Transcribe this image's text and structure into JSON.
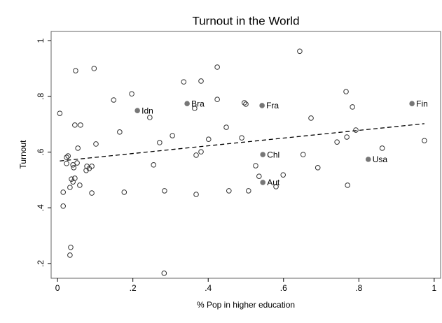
{
  "chart_data": {
    "type": "scatter",
    "title": "Turnout in the World",
    "x_label": "% Pop in higher education",
    "y_label": "Turnout",
    "xlim": [
      -0.017,
      1.017
    ],
    "ylim": [
      0.147,
      1.033
    ],
    "xticks": [
      0,
      {
        "value": 0.2,
        "label": ".2"
      },
      {
        "value": 0.4,
        "label": ".4"
      },
      {
        "value": 0.6,
        "label": ".6"
      },
      {
        "value": 0.8,
        "label": ".8"
      },
      1
    ],
    "yticks": [
      {
        "value": 0.2,
        "label": ".2"
      },
      {
        "value": 0.4,
        "label": ".4"
      },
      {
        "value": 0.6,
        "label": ".6"
      },
      {
        "value": 0.8,
        "label": ".8"
      },
      1
    ],
    "series": [
      {
        "marker": "hollow",
        "color": "#333333",
        "x": [
          0.006,
          0.015,
          0.015,
          0.024,
          0.024,
          0.028,
          0.033,
          0.035,
          0.033,
          0.037,
          0.041,
          0.041,
          0.043,
          0.046,
          0.046,
          0.048,
          0.052,
          0.054,
          0.061,
          0.059,
          0.078,
          0.076,
          0.084,
          0.091,
          0.091,
          0.097,
          0.102,
          0.149,
          0.165,
          0.177,
          0.197,
          0.245,
          0.255,
          0.271,
          0.284,
          0.283,
          0.305,
          0.335,
          0.364,
          0.368,
          0.368,
          0.381,
          0.381,
          0.401,
          0.424,
          0.424,
          0.448,
          0.455,
          0.489,
          0.496,
          0.5,
          0.507,
          0.526,
          0.535,
          0.58,
          0.599,
          0.643,
          0.652,
          0.673,
          0.691,
          0.742,
          0.766,
          0.768,
          0.77,
          0.783,
          0.792,
          0.862,
          0.974
        ],
        "values": [
          0.739,
          0.456,
          0.406,
          0.581,
          0.559,
          0.586,
          0.473,
          0.258,
          0.23,
          0.503,
          0.554,
          0.493,
          0.544,
          0.506,
          0.697,
          0.892,
          0.561,
          0.614,
          0.697,
          0.481,
          0.549,
          0.534,
          0.541,
          0.549,
          0.453,
          0.9,
          0.629,
          0.787,
          0.672,
          0.456,
          0.809,
          0.724,
          0.554,
          0.634,
          0.461,
          0.165,
          0.659,
          0.852,
          0.757,
          0.589,
          0.448,
          0.855,
          0.601,
          0.646,
          0.905,
          0.789,
          0.689,
          0.461,
          0.651,
          0.777,
          0.772,
          0.461,
          0.551,
          0.513,
          0.476,
          0.518,
          0.962,
          0.591,
          0.722,
          0.544,
          0.636,
          0.817,
          0.654,
          0.481,
          0.762,
          0.679,
          0.614,
          0.641
        ]
      },
      {
        "marker": "filled",
        "color": "#777777",
        "labels": [
          "Idn",
          "Bra",
          "Fra",
          "Chl",
          "Aut",
          "Usa",
          "Fin"
        ],
        "x": [
          0.212,
          0.344,
          0.543,
          0.545,
          0.545,
          0.825,
          0.941
        ],
        "values": [
          0.749,
          0.774,
          0.767,
          0.591,
          0.491,
          0.574,
          0.774
        ]
      }
    ],
    "fit": {
      "type": "line",
      "dash": true,
      "color": "#000000",
      "x": [
        0.006,
        0.974
      ],
      "values": [
        0.568,
        0.702
      ]
    }
  }
}
